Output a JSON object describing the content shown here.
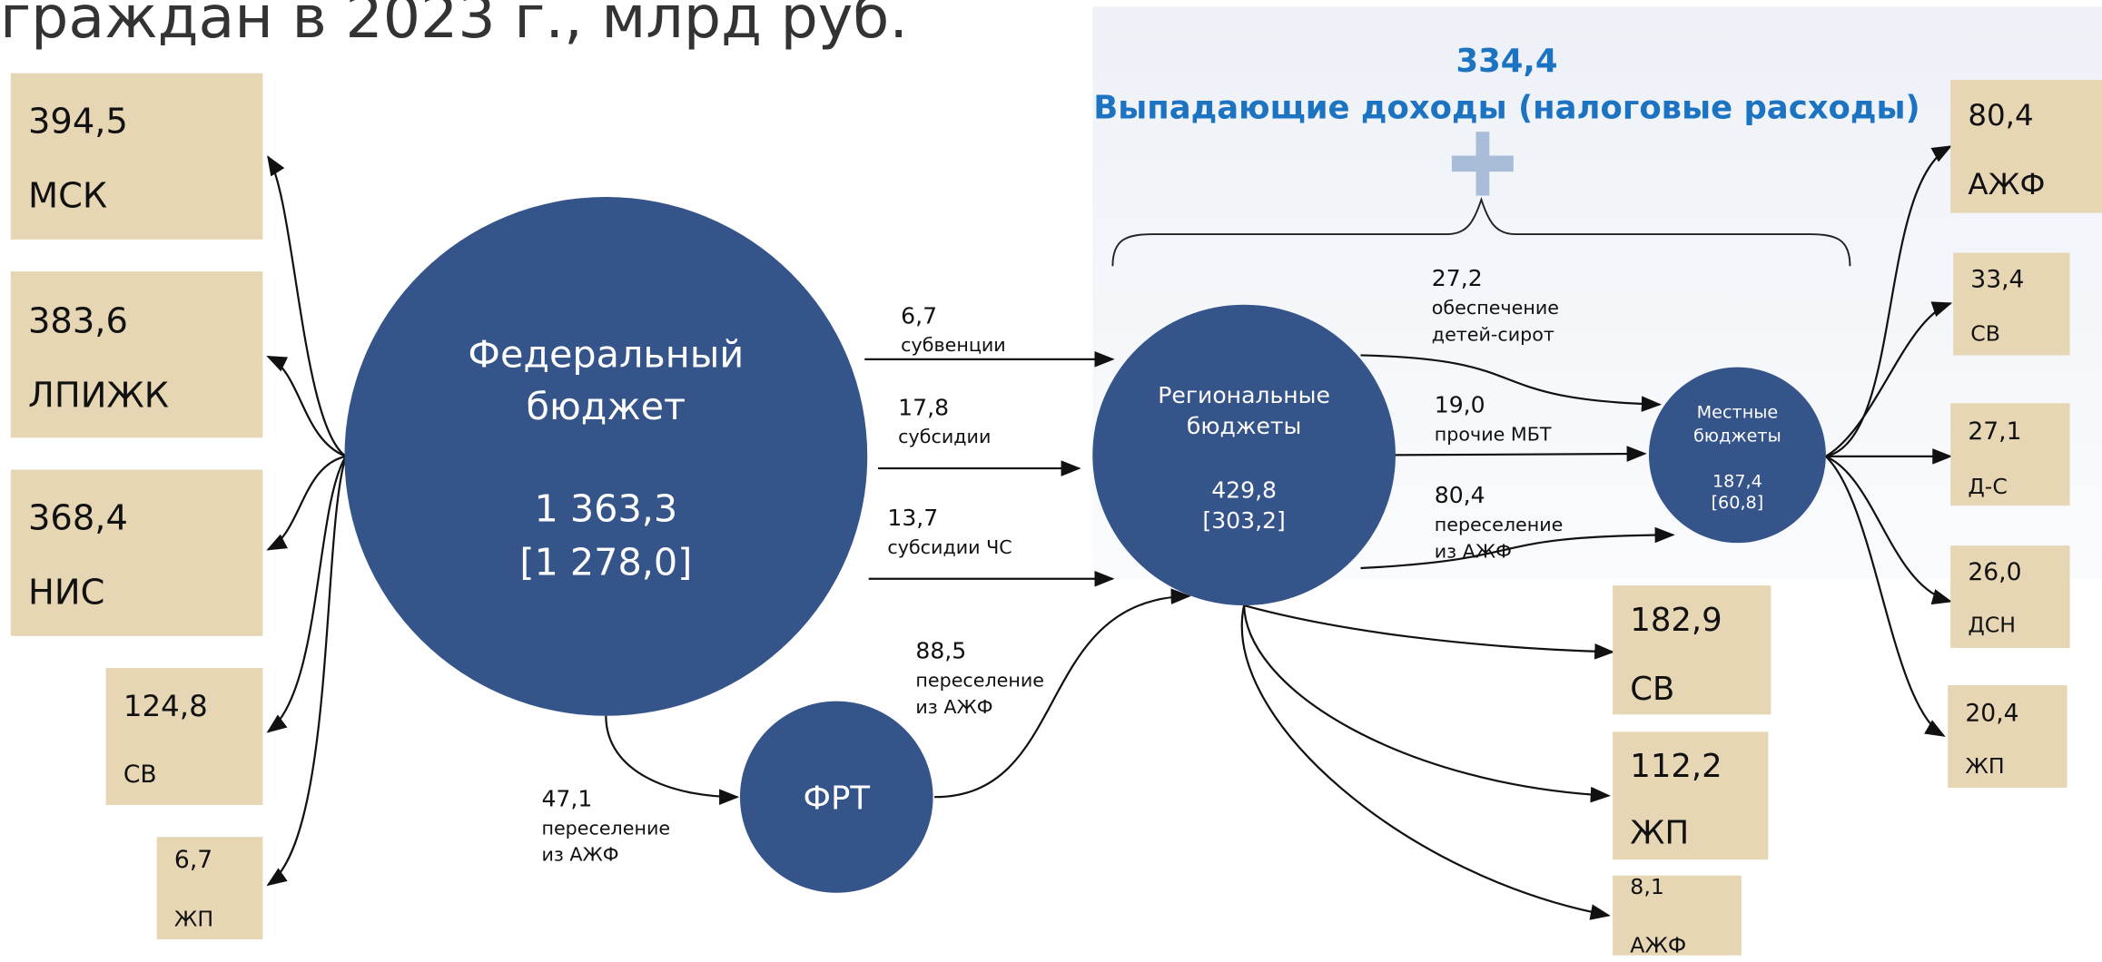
{
  "header": {
    "title": "граждан в 2023 г., млрд руб."
  },
  "tax": {
    "value": "334,4",
    "label": "Выпадающие доходы (налоговые расходы)"
  },
  "nodes": [
    {
      "label": [
        "Федеральный",
        "бюджет"
      ],
      "value": "1 363,3",
      "bracket": "[1 278,0]"
    },
    {
      "label": [
        "Региональные",
        "бюджеты"
      ],
      "value": "429,8",
      "bracket": "[303,2]"
    },
    {
      "label": [
        "Местные",
        "бюджеты"
      ],
      "value": "187,4",
      "bracket": "[60,8]"
    },
    {
      "label": [
        "ФРТ"
      ]
    }
  ],
  "boxes": [
    {
      "value": "394,5",
      "label": "МСК"
    },
    {
      "value": "383,6",
      "label": "ЛПИЖК"
    },
    {
      "value": "368,4",
      "label": "НИС"
    },
    {
      "value": "124,8",
      "label": "СВ"
    },
    {
      "value": "6,7",
      "label": "ЖП"
    },
    {
      "value": "182,9",
      "label": "СВ"
    },
    {
      "value": "112,2",
      "label": "ЖП"
    },
    {
      "value": "8,1",
      "label": "АЖФ"
    },
    {
      "value": "80,4",
      "label": "АЖФ"
    },
    {
      "value": "33,4",
      "label": "СВ"
    },
    {
      "value": "27,1",
      "label": "Д-С"
    },
    {
      "value": "26,0",
      "label": "ДСН"
    },
    {
      "value": "20,4",
      "label": "ЖП"
    }
  ],
  "flows": [
    {
      "value": "6,7",
      "label": [
        "субвенции"
      ]
    },
    {
      "value": "17,8",
      "label": [
        "субсидии"
      ]
    },
    {
      "value": "13,7",
      "label": [
        "субсидии ЧС"
      ]
    },
    {
      "value": "88,5",
      "label": [
        "переселение",
        "из АЖФ"
      ]
    },
    {
      "value": "47,1",
      "label": [
        "переселение",
        "из АЖФ"
      ]
    },
    {
      "value": "27,2",
      "label": [
        "обеспечение",
        "детей-сирот"
      ]
    },
    {
      "value": "19,0",
      "label": [
        "прочие МБТ"
      ]
    },
    {
      "value": "80,4",
      "label": [
        "переселение",
        "из АЖФ"
      ]
    }
  ]
}
